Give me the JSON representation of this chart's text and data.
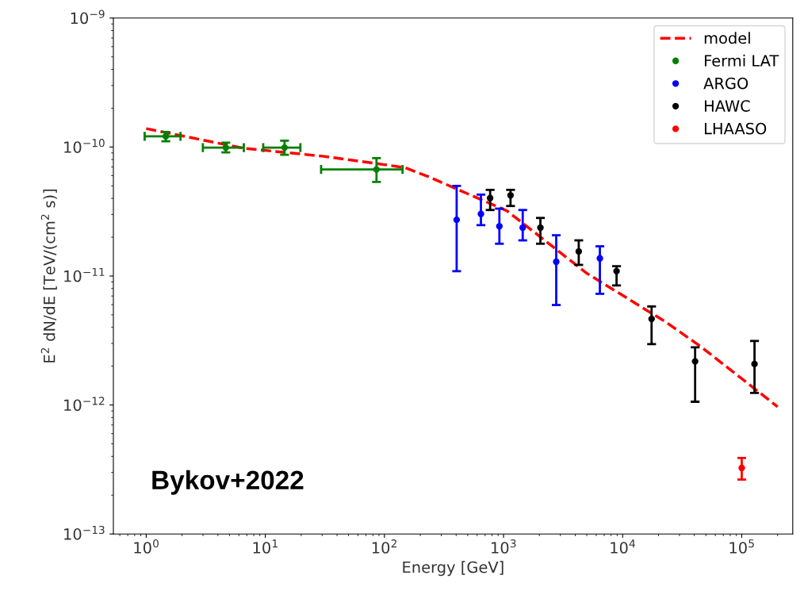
{
  "chart_data": {
    "type": "scatter",
    "xlabel": "Energy [GeV]",
    "ylabel": "E$^{2}$ dN/dE [TeV/(cm$^{2}$ s)]",
    "log": "xy",
    "grid": false,
    "legend": "top right",
    "marker": "circle",
    "xlim": [
      0.53,
      268000
    ],
    "ylim": [
      1e-13,
      1e-09
    ],
    "xticks": [
      {
        "value": 1,
        "label": "10$^{0}$"
      },
      {
        "value": 10,
        "label": "10$^{1}$"
      },
      {
        "value": 100,
        "label": "10$^{2}$"
      },
      {
        "value": 1000,
        "label": "10$^{3}$"
      },
      {
        "value": 10000,
        "label": "10$^{4}$"
      },
      {
        "value": 100000,
        "label": "10$^{5}$"
      }
    ],
    "yticks": [
      {
        "value": 1e-13,
        "label": "10$^{−13}$"
      },
      {
        "value": 1e-12,
        "label": "10$^{−12}$"
      },
      {
        "value": 1e-11,
        "label": "10$^{−11}$"
      },
      {
        "value": 1e-10,
        "label": "10$^{−10}$"
      },
      {
        "value": 1e-09,
        "label": "10$^{−9}$"
      }
    ],
    "series": [
      {
        "name": "model",
        "type": "line",
        "line_style": "dashed",
        "marker": "none",
        "color": "#ff0000",
        "x": [
          1,
          6.5,
          30,
          100,
          150,
          233,
          1070,
          5000,
          23000,
          45000,
          200000
        ],
        "values": [
          1.39e-10,
          9.8e-11,
          8.5e-11,
          7.3e-11,
          6.9e-11,
          5.9e-11,
          3.2e-11,
          1.05e-11,
          4.4e-12,
          2.85e-12,
          9.7e-13
        ]
      },
      {
        "name": "Fermi LAT",
        "color": "#008000",
        "x": [
          1.46,
          4.66,
          14.5,
          85.8
        ],
        "values": [
          1.21e-10,
          9.9e-11,
          9.9e-11,
          6.7e-11
        ],
        "errors": [
          [
            1.11e-10,
            1.31e-10
          ],
          [
            9.1e-11,
            1.08e-10
          ],
          [
            8.7e-11,
            1.12e-10
          ],
          [
            5.36e-11,
            8.2e-11
          ]
        ],
        "xerrors": [
          [
            0.97,
            1.94
          ],
          [
            2.99,
            6.6
          ],
          [
            9.6,
            19.7
          ],
          [
            29.4,
            142
          ]
        ]
      },
      {
        "name": "ARGO",
        "color": "#0000ff",
        "x": [
          404,
          646,
          923,
          1449,
          2770,
          6440
        ],
        "values": [
          2.73e-11,
          3.03e-11,
          2.43e-11,
          2.37e-11,
          1.29e-11,
          1.37e-11
        ],
        "errors": [
          [
            1.09e-11,
            4.99e-11
          ],
          [
            2.48e-11,
            4.27e-11
          ],
          [
            1.78e-11,
            3.33e-11
          ],
          [
            1.89e-11,
            3.25e-11
          ],
          [
            5.96e-12,
            2.07e-11
          ],
          [
            7.28e-12,
            1.7e-11
          ]
        ]
      },
      {
        "name": "HAWC",
        "color": "#000000",
        "x": [
          772,
          1145,
          2040,
          4280,
          8890,
          17500,
          40600,
          128000
        ],
        "values": [
          4.02e-11,
          4.22e-11,
          2.37e-11,
          1.55e-11,
          1.09e-11,
          4.65e-12,
          2.18e-12,
          2.08e-12
        ],
        "errors": [
          [
            3.25e-11,
            4.65e-11
          ],
          [
            3.49e-11,
            4.65e-11
          ],
          [
            1.78e-11,
            2.82e-11
          ],
          [
            1.22e-11,
            1.89e-11
          ],
          [
            8.45e-12,
            1.19e-11
          ],
          [
            2.96e-12,
            5.8e-12
          ],
          [
            1.06e-12,
            2.8e-12
          ],
          [
            1.24e-12,
            3.14e-12
          ]
        ]
      },
      {
        "name": "LHAASO",
        "color": "#ff0000",
        "x": [
          100000
        ],
        "values": [
          3.25e-13
        ],
        "errors": [
          [
            2.64e-13,
            3.89e-13
          ]
        ]
      }
    ],
    "annotations": [
      "Bykov+2022"
    ]
  }
}
